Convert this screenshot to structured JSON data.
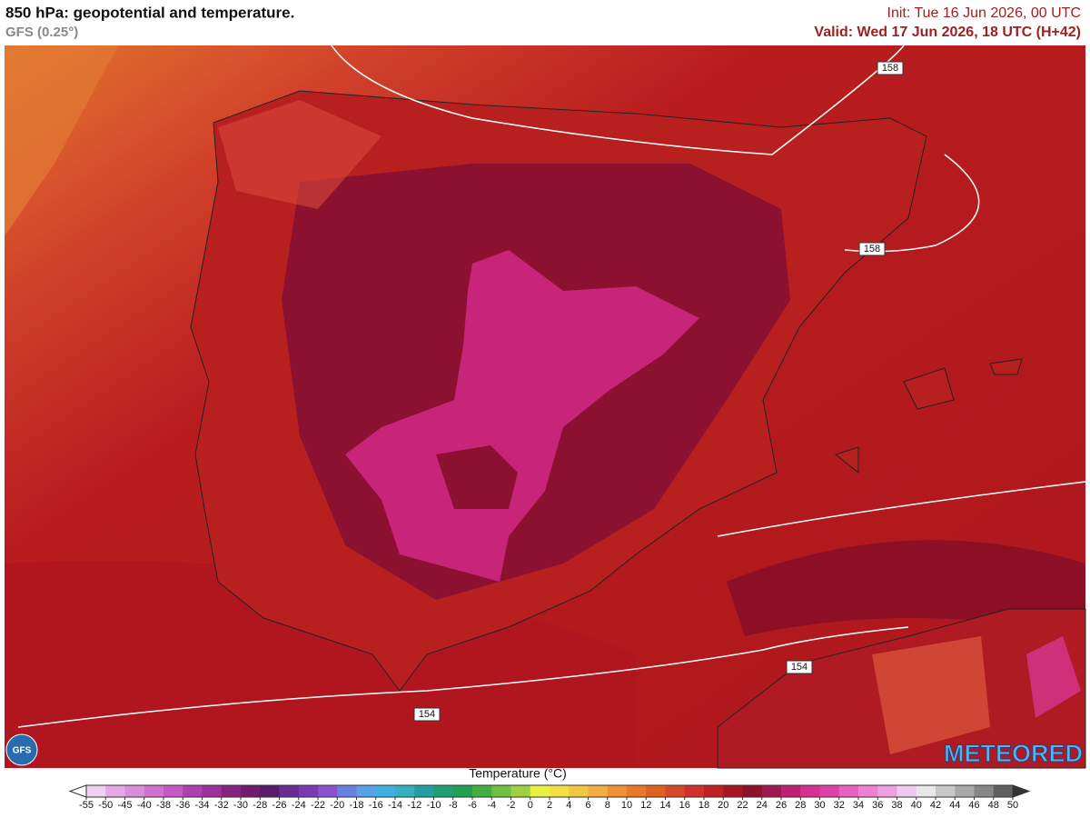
{
  "header": {
    "title": "850 hPa: geopotential and temperature.",
    "subtitle": "GFS (0.25°)",
    "init": "Init: Tue 16 Jun 2026, 00 UTC",
    "valid": "Valid: Wed 17 Jun 2026, 18 UTC (H+42)"
  },
  "map": {
    "contour_labels": [
      "158",
      "158",
      "154",
      "154"
    ],
    "logo": "METEORED",
    "badge": "GFS"
  },
  "legend": {
    "title": "Temperature (°C)",
    "ticks": [
      -55,
      -50,
      -45,
      -40,
      -38,
      -36,
      -34,
      -32,
      -30,
      -28,
      -26,
      -24,
      -22,
      -20,
      -18,
      -16,
      -14,
      -12,
      -10,
      -8,
      -6,
      -4,
      -2,
      0,
      2,
      4,
      6,
      8,
      10,
      12,
      14,
      16,
      18,
      20,
      22,
      24,
      26,
      28,
      30,
      32,
      34,
      36,
      38,
      40,
      42,
      44,
      46,
      48,
      50
    ],
    "colors": [
      "#f0d0f0",
      "#e6a8e6",
      "#dc8cdc",
      "#d070d0",
      "#c458c4",
      "#b040b0",
      "#9c309c",
      "#862486",
      "#701a70",
      "#5a1a6e",
      "#6a2a90",
      "#7a3ab0",
      "#8a50d0",
      "#6a80e0",
      "#5aa0e8",
      "#40b0e0",
      "#30b0c0",
      "#20a0a0",
      "#20a070",
      "#20a050",
      "#40b040",
      "#70c040",
      "#a0d040",
      "#e8f040",
      "#f0e040",
      "#f0c840",
      "#f0b040",
      "#f09030",
      "#e87828",
      "#e06020",
      "#d84828",
      "#d03028",
      "#c02020",
      "#a81520",
      "#901028",
      "#a01850",
      "#c02070",
      "#d83090",
      "#e040a8",
      "#e860c0",
      "#f080d0",
      "#f0a0e0",
      "#f0c8f0",
      "#e8e8e8",
      "#c8c8c8",
      "#a8a8a8",
      "#888888",
      "#606060"
    ]
  }
}
